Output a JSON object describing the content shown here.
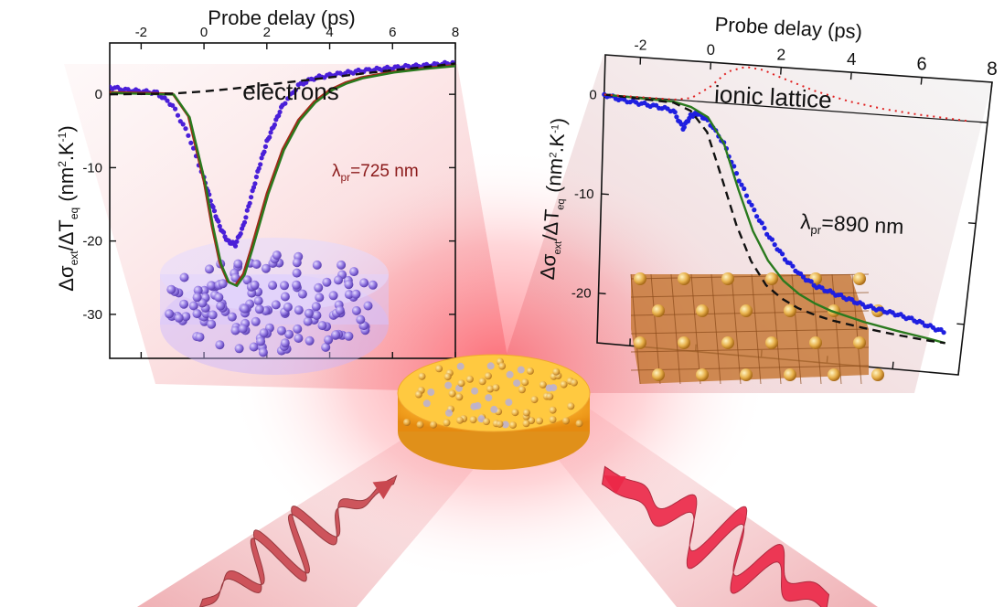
{
  "ylabel": {
    "part1": "Δσ",
    "sub1": "ext",
    "part2": "/ΔT",
    "sub2": "eq",
    "part3": " (nm",
    "sup1": "2",
    "part4": ".K",
    "sup2": "-1",
    "part5": ")"
  },
  "panels": [
    {
      "title": "electrons",
      "xlabel": "Probe delay (ps)",
      "annotation": {
        "symbol": "λ",
        "subscript": "pr",
        "value": "=725 nm"
      }
    },
    {
      "title": "ionic lattice",
      "xlabel": "Probe delay (ps)",
      "annotation": {
        "symbol": "λ",
        "subscript": "pr",
        "value": "=890 nm"
      }
    }
  ],
  "colors": {
    "data_points": "#1f1fe0",
    "data_points_left": "#4a1fd8",
    "fit_green": "#2a7a1e",
    "fit_red": "#a02a1a",
    "model_dashed": "#111111",
    "dotted_red": "#e02020"
  },
  "chart_data": [
    {
      "type": "line",
      "title": "electrons",
      "xlabel": "Probe delay (ps)",
      "ylabel": "Δσext/ΔTeq (nm2.K-1)",
      "xlim": [
        -3,
        8
      ],
      "ylim": [
        -36,
        7
      ],
      "xticks": [
        -2,
        0,
        2,
        4,
        6,
        8
      ],
      "yticks": [
        0,
        -10,
        -20,
        -30
      ],
      "annotation": "λpr=725 nm",
      "series": [
        {
          "style": "points",
          "x": [
            -3,
            -2.5,
            -2,
            -1.5,
            -1,
            -0.5,
            0,
            0.25,
            0.5,
            0.75,
            1,
            1.25,
            1.5,
            1.75,
            2,
            2.25,
            2.5,
            3,
            3.5,
            4,
            4.5,
            5,
            5.5,
            6,
            6.5,
            7,
            7.5,
            8
          ],
          "y": [
            1,
            0.6,
            0.4,
            0.2,
            -1.5,
            -5.5,
            -11.5,
            -15,
            -18,
            -20,
            -20.5,
            -18,
            -14,
            -10,
            -6.5,
            -4,
            -1.5,
            1.2,
            2.2,
            2.6,
            2.9,
            3.2,
            3.4,
            3.6,
            3.8,
            3.9,
            4.1,
            4.3
          ]
        },
        {
          "style": "solid",
          "x": [
            -3,
            -1,
            -0.5,
            0,
            0.25,
            0.5,
            0.75,
            1,
            1.25,
            1.5,
            2,
            2.5,
            3,
            3.5,
            4,
            4.5,
            5,
            6,
            7,
            8
          ],
          "y": [
            0.3,
            0.1,
            -3,
            -12,
            -18,
            -23,
            -25.5,
            -26,
            -24.5,
            -21,
            -13.5,
            -7.5,
            -3.5,
            -1,
            0.6,
            1.6,
            2.3,
            3.1,
            3.6,
            4
          ]
        },
        {
          "style": "dashed",
          "x": [
            -3,
            -1,
            0,
            1,
            2,
            3,
            4,
            5,
            6,
            7,
            8
          ],
          "y": [
            0,
            0.1,
            0.4,
            0.8,
            1.3,
            1.8,
            2.3,
            2.8,
            3.3,
            3.7,
            4.2
          ]
        }
      ]
    },
    {
      "type": "line",
      "title": "ionic lattice",
      "xlabel": "Probe delay (ps)",
      "ylabel": "Δσext/ΔTeq (nm2.K-1)",
      "xlim": [
        -3,
        8
      ],
      "ylim": [
        -25,
        4
      ],
      "xticks": [
        -2,
        0,
        2,
        4,
        6,
        8
      ],
      "yticks": [
        0,
        -10,
        -20
      ],
      "annotation": "λpr=890 nm",
      "series": [
        {
          "style": "points",
          "x": [
            -3,
            -2.5,
            -2,
            -1.5,
            -1,
            -0.7,
            -0.5,
            -0.3,
            0,
            0.5,
            1,
            1.5,
            2,
            2.5,
            3,
            3.5,
            4,
            4.5,
            5,
            5.5,
            6,
            6.5,
            7,
            7.5
          ],
          "y": [
            0,
            -0.4,
            -0.6,
            -0.8,
            -1.1,
            -2.8,
            -1.5,
            -1.2,
            -1.8,
            -4,
            -7.5,
            -10.5,
            -13,
            -15,
            -16.5,
            -17.5,
            -18,
            -18.5,
            -19,
            -19.3,
            -19.6,
            -20,
            -20.5,
            -21
          ]
        },
        {
          "style": "solid",
          "x": [
            -3,
            -1,
            -0.5,
            0,
            0.5,
            1,
            1.5,
            2,
            2.5,
            3,
            3.5,
            4,
            5,
            6,
            7,
            7.5
          ],
          "y": [
            0,
            -0.2,
            -0.6,
            -1.5,
            -4,
            -8.5,
            -12.5,
            -15.3,
            -17.2,
            -18.4,
            -19.2,
            -19.8,
            -20.6,
            -21.2,
            -21.7,
            -22
          ]
        },
        {
          "style": "dashed",
          "x": [
            -3,
            -1,
            -0.5,
            0,
            0.5,
            1,
            1.5,
            2,
            2.5,
            3,
            3.5,
            4,
            5,
            6,
            7,
            7.5
          ],
          "y": [
            0,
            -0.3,
            -1,
            -3,
            -7.5,
            -12,
            -15.5,
            -17.8,
            -19,
            -19.8,
            -20.3,
            -20.7,
            -21.2,
            -21.6,
            -21.9,
            -22
          ]
        },
        {
          "style": "dotted",
          "x": [
            -3,
            -1,
            -0.5,
            0,
            0.5,
            1,
            1.5,
            2,
            3,
            4,
            5,
            6,
            7,
            7.5
          ],
          "y": [
            0,
            0,
            0.3,
            1.5,
            3.2,
            3.8,
            3.6,
            3,
            1.9,
            1.1,
            0.6,
            0.3,
            0.1,
            0
          ]
        }
      ]
    }
  ]
}
